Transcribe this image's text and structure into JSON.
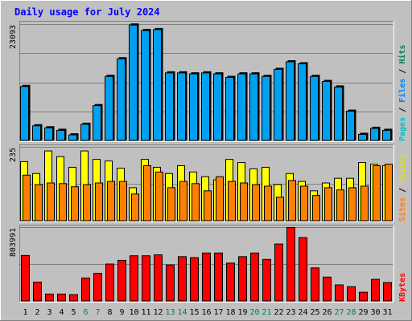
{
  "title": "Daily usage for July 2024",
  "chart_data": [
    {
      "type": "bar",
      "panel": "top",
      "y_max_label": "23093",
      "ylim": [
        0,
        23093
      ],
      "categories": [
        "1",
        "2",
        "3",
        "4",
        "5",
        "6",
        "7",
        "8",
        "9",
        "10",
        "11",
        "12",
        "13",
        "14",
        "15",
        "16",
        "17",
        "18",
        "19",
        "20",
        "21",
        "22",
        "23",
        "24",
        "25",
        "26",
        "27",
        "28",
        "29",
        "30",
        "31"
      ],
      "weekend_days": [
        "6",
        "7",
        "13",
        "14",
        "20",
        "21",
        "27",
        "28"
      ],
      "right_label": {
        "parts": [
          "Pages",
          " / ",
          "Files",
          " / ",
          "Hits"
        ]
      },
      "series": [
        {
          "name": "Hits",
          "color": "#00C0C0",
          "values": [
            10700,
            2900,
            2500,
            2000,
            1100,
            3200,
            6900,
            12700,
            16200,
            22900,
            21800,
            22000,
            13400,
            13400,
            13200,
            13400,
            13200,
            12500,
            13200,
            13200,
            12700,
            14100,
            15600,
            15200,
            12700,
            11700,
            10600,
            5800,
            1200,
            2400,
            2000
          ]
        },
        {
          "name": "Files",
          "color": "#00A0F0",
          "values": [
            10700,
            2900,
            2500,
            2000,
            1100,
            3200,
            6900,
            12700,
            16200,
            22900,
            21800,
            22000,
            13400,
            13400,
            13200,
            13400,
            13200,
            12500,
            13200,
            13200,
            12700,
            14100,
            15600,
            15200,
            12700,
            11700,
            10600,
            5800,
            1200,
            2400,
            2000
          ]
        },
        {
          "name": "Pages",
          "color": "#0080C0",
          "values": [
            10700,
            2900,
            2500,
            2000,
            1100,
            3200,
            6900,
            12700,
            16200,
            22900,
            21800,
            22000,
            13400,
            13400,
            13200,
            13400,
            13200,
            12500,
            13200,
            13200,
            12700,
            14100,
            15600,
            15200,
            12700,
            11700,
            10600,
            5800,
            1200,
            2400,
            2000
          ]
        }
      ]
    },
    {
      "type": "bar",
      "panel": "middle",
      "y_max_label": "235",
      "ylim": [
        0,
        235
      ],
      "categories": [
        "1",
        "2",
        "3",
        "4",
        "5",
        "6",
        "7",
        "8",
        "9",
        "10",
        "11",
        "12",
        "13",
        "14",
        "15",
        "16",
        "17",
        "18",
        "19",
        "20",
        "21",
        "22",
        "23",
        "24",
        "25",
        "26",
        "27",
        "28",
        "29",
        "30",
        "31"
      ],
      "right_label": {
        "parts": [
          "Sites",
          " / ",
          "Visits"
        ]
      },
      "series": [
        {
          "name": "Visits",
          "color": "#FFFF00",
          "values": [
            188,
            150,
            222,
            204,
            170,
            222,
            195,
            190,
            167,
            105,
            195,
            170,
            150,
            175,
            155,
            140,
            130,
            195,
            185,
            165,
            170,
            115,
            150,
            125,
            95,
            120,
            135,
            135,
            185,
            180,
            175
          ]
        },
        {
          "name": "Sites",
          "color": "#FF8000",
          "values": [
            145,
            115,
            120,
            118,
            108,
            115,
            120,
            125,
            125,
            85,
            175,
            155,
            105,
            125,
            118,
            95,
            140,
            125,
            120,
            115,
            110,
            75,
            128,
            110,
            80,
            105,
            98,
            105,
            110,
            175,
            180
          ]
        }
      ]
    },
    {
      "type": "bar",
      "panel": "bottom",
      "y_max_label": "803991",
      "ylim": [
        0,
        803991
      ],
      "categories": [
        "1",
        "2",
        "3",
        "4",
        "5",
        "6",
        "7",
        "8",
        "9",
        "10",
        "11",
        "12",
        "13",
        "14",
        "15",
        "16",
        "17",
        "18",
        "19",
        "20",
        "21",
        "22",
        "23",
        "24",
        "25",
        "26",
        "27",
        "28",
        "29",
        "30",
        "31"
      ],
      "right_label": {
        "parts": [
          "KBytes"
        ]
      },
      "series": [
        {
          "name": "KBytes",
          "color": "#FF0000",
          "values": [
            495000,
            205000,
            75000,
            75000,
            68000,
            250000,
            300000,
            402000,
            442000,
            492000,
            492000,
            502000,
            392000,
            482000,
            472000,
            522000,
            522000,
            412000,
            482000,
            522000,
            452000,
            620000,
            800000,
            690000,
            360000,
            260000,
            175000,
            155000,
            95000,
            235000,
            200000
          ]
        }
      ]
    }
  ],
  "colors": {
    "title": "#0000FF",
    "weekday_label": "#000000",
    "weekend_label": "#00805C",
    "background": "#C0C0C0",
    "panel": "#C0C0C0",
    "gridline": "#808080"
  }
}
